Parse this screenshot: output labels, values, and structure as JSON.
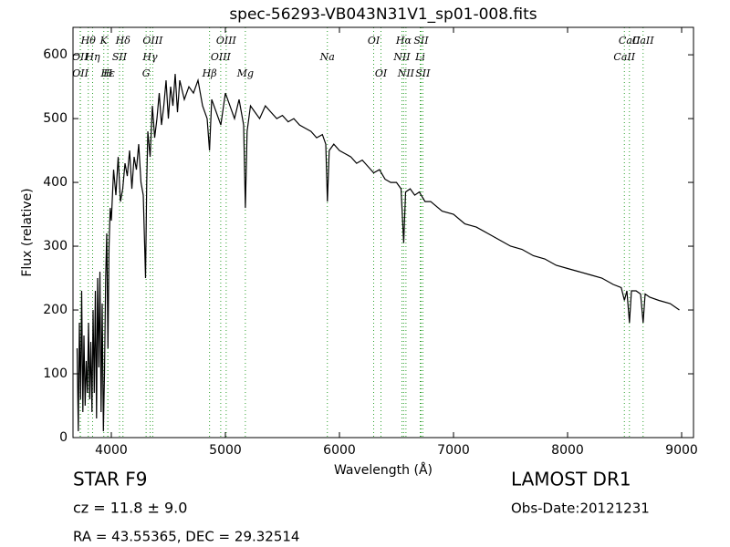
{
  "chart_data": {
    "type": "line",
    "title": "spec-56293-VB043N31V1_sp01-008.fits",
    "x_label": "Wavelength (Å)",
    "y_label": "Flux (relative)",
    "xlim": [
      3664,
      9104
    ],
    "ylim": [
      0,
      643
    ],
    "xticks": [
      4000,
      5000,
      6000,
      7000,
      8000,
      9000
    ],
    "yticks": [
      0,
      100,
      200,
      300,
      400,
      500,
      600
    ],
    "color": "#000000",
    "line_marker_color": "#2ca02c",
    "x": [
      3700,
      3710,
      3720,
      3730,
      3740,
      3750,
      3760,
      3770,
      3780,
      3790,
      3800,
      3810,
      3820,
      3830,
      3840,
      3850,
      3860,
      3870,
      3880,
      3890,
      3900,
      3910,
      3920,
      3930,
      3940,
      3950,
      3960,
      3970,
      3980,
      3990,
      4000,
      4020,
      4040,
      4060,
      4080,
      4100,
      4120,
      4140,
      4160,
      4180,
      4200,
      4220,
      4240,
      4260,
      4280,
      4300,
      4310,
      4320,
      4340,
      4360,
      4380,
      4400,
      4420,
      4440,
      4460,
      4480,
      4500,
      4520,
      4540,
      4560,
      4580,
      4600,
      4640,
      4680,
      4720,
      4760,
      4800,
      4840,
      4861,
      4880,
      4920,
      4960,
      5000,
      5040,
      5080,
      5120,
      5160,
      5175,
      5190,
      5220,
      5260,
      5300,
      5350,
      5400,
      5450,
      5500,
      5550,
      5600,
      5650,
      5700,
      5750,
      5800,
      5850,
      5880,
      5894,
      5910,
      5950,
      6000,
      6050,
      6100,
      6150,
      6200,
      6250,
      6300,
      6350,
      6400,
      6450,
      6500,
      6540,
      6563,
      6580,
      6620,
      6660,
      6700,
      6750,
      6800,
      6900,
      7000,
      7100,
      7200,
      7300,
      7400,
      7500,
      7600,
      7700,
      7800,
      7900,
      8000,
      8100,
      8200,
      8300,
      8400,
      8470,
      8498,
      8520,
      8542,
      8560,
      8600,
      8640,
      8662,
      8680,
      8720,
      8800,
      8900,
      8980
    ],
    "values": [
      140,
      10,
      180,
      60,
      230,
      40,
      160,
      50,
      120,
      70,
      180,
      60,
      150,
      40,
      200,
      70,
      230,
      30,
      250,
      110,
      260,
      40,
      210,
      10,
      100,
      250,
      320,
      140,
      300,
      360,
      340,
      420,
      380,
      440,
      370,
      390,
      430,
      410,
      450,
      390,
      440,
      420,
      460,
      400,
      380,
      250,
      400,
      480,
      440,
      520,
      470,
      500,
      540,
      490,
      520,
      560,
      500,
      550,
      520,
      570,
      510,
      560,
      530,
      550,
      540,
      560,
      520,
      500,
      450,
      530,
      510,
      490,
      540,
      520,
      500,
      530,
      490,
      360,
      480,
      520,
      510,
      500,
      520,
      510,
      500,
      505,
      495,
      500,
      490,
      485,
      480,
      470,
      475,
      460,
      370,
      450,
      460,
      450,
      445,
      440,
      430,
      435,
      425,
      415,
      420,
      405,
      400,
      400,
      390,
      305,
      385,
      390,
      380,
      385,
      370,
      370,
      355,
      350,
      335,
      330,
      320,
      310,
      300,
      295,
      285,
      280,
      270,
      265,
      260,
      255,
      250,
      240,
      235,
      215,
      230,
      180,
      230,
      230,
      225,
      180,
      225,
      220,
      215,
      210,
      200
    ],
    "spectral_lines": [
      {
        "wavelength": 3798,
        "label": "Hθ"
      },
      {
        "wavelength": 3727,
        "label": "OII"
      },
      {
        "wavelength": 3729,
        "label": "OII"
      },
      {
        "wavelength": 3934,
        "label": "K"
      },
      {
        "wavelength": 3836,
        "label": "Hη"
      },
      {
        "wavelength": 3970,
        "label": "Hε"
      },
      {
        "wavelength": 4102,
        "label": "Hδ"
      },
      {
        "wavelength": 4072,
        "label": "SII"
      },
      {
        "wavelength": 3969,
        "label": "H"
      },
      {
        "wavelength": 4363,
        "label": "OIII"
      },
      {
        "wavelength": 4340,
        "label": "Hγ"
      },
      {
        "wavelength": 4305,
        "label": "G"
      },
      {
        "wavelength": 5007,
        "label": "OIII"
      },
      {
        "wavelength": 4959,
        "label": "OIII"
      },
      {
        "wavelength": 4861,
        "label": "Hβ"
      },
      {
        "wavelength": 6300,
        "label": "OI"
      },
      {
        "wavelength": 5894,
        "label": "Na"
      },
      {
        "wavelength": 5175,
        "label": "Mg"
      },
      {
        "wavelength": 6563,
        "label": "Hα"
      },
      {
        "wavelength": 6548,
        "label": "NII"
      },
      {
        "wavelength": 6364,
        "label": "OI"
      },
      {
        "wavelength": 6716,
        "label": "SII"
      },
      {
        "wavelength": 6708,
        "label": "Li"
      },
      {
        "wavelength": 6583,
        "label": "NII"
      },
      {
        "wavelength": 8542,
        "label": "CaII"
      },
      {
        "wavelength": 8498,
        "label": "CaII"
      },
      {
        "wavelength": 6731,
        "label": "SII"
      },
      {
        "wavelength": 8662,
        "label": "CaII"
      }
    ],
    "annotations": {
      "object": "STAR   F9",
      "redshift": "cz = 11.8 ± 9.0",
      "coordinates": "RA = 43.55365, DEC = 29.32514",
      "survey": "LAMOST DR1",
      "obs_date": "Obs-Date:20121231"
    }
  }
}
